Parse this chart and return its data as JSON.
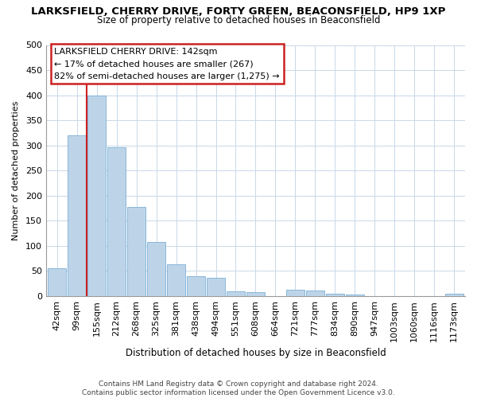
{
  "title": "LARKSFIELD, CHERRY DRIVE, FORTY GREEN, BEACONSFIELD, HP9 1XP",
  "subtitle": "Size of property relative to detached houses in Beaconsfield",
  "xlabel": "Distribution of detached houses by size in Beaconsfield",
  "ylabel": "Number of detached properties",
  "bar_labels": [
    "42sqm",
    "99sqm",
    "155sqm",
    "212sqm",
    "268sqm",
    "325sqm",
    "381sqm",
    "438sqm",
    "494sqm",
    "551sqm",
    "608sqm",
    "664sqm",
    "721sqm",
    "777sqm",
    "834sqm",
    "890sqm",
    "947sqm",
    "1003sqm",
    "1060sqm",
    "1116sqm",
    "1173sqm"
  ],
  "bar_heights": [
    55,
    320,
    400,
    297,
    178,
    108,
    63,
    40,
    36,
    9,
    8,
    0,
    13,
    11,
    5,
    3,
    0,
    0,
    0,
    0,
    5
  ],
  "bar_color": "#bdd4e8",
  "bar_edge_color": "#7aafd4",
  "vline_color": "#cc2222",
  "ylim": [
    0,
    500
  ],
  "yticks": [
    0,
    50,
    100,
    150,
    200,
    250,
    300,
    350,
    400,
    450,
    500
  ],
  "annotation_title": "LARKSFIELD CHERRY DRIVE: 142sqm",
  "annotation_line1": "← 17% of detached houses are smaller (267)",
  "annotation_line2": "82% of semi-detached houses are larger (1,275) →",
  "annotation_box_color": "#ffffff",
  "annotation_box_edge": "#cc2222",
  "footer_line1": "Contains HM Land Registry data © Crown copyright and database right 2024.",
  "footer_line2": "Contains public sector information licensed under the Open Government Licence v3.0.",
  "background_color": "#ffffff",
  "grid_color": "#c8d8e8"
}
